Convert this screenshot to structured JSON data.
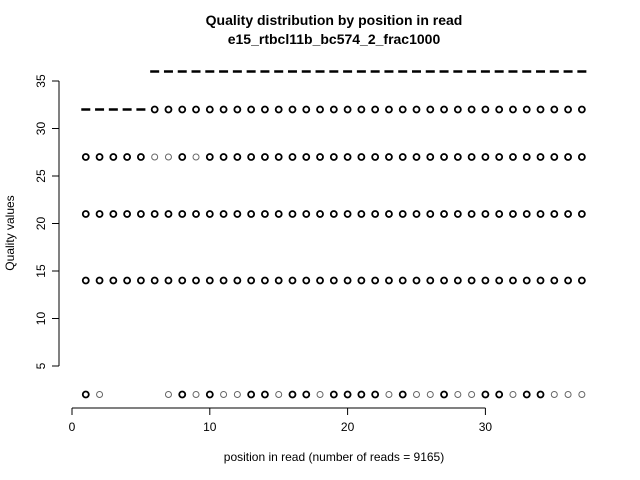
{
  "chart_data": {
    "type": "scatter",
    "title": "Quality distribution by position in read",
    "subtitle": "e15_rtbcl11b_bc574_2_frac1000",
    "xlabel": "position in read (number of reads = 9165)",
    "ylabel": "Quality values",
    "xlim": [
      0,
      38
    ],
    "ylim": [
      1,
      37
    ],
    "xticks": [
      0,
      10,
      20,
      30
    ],
    "yticks": [
      5,
      10,
      15,
      20,
      25,
      30,
      35
    ],
    "grid": false,
    "points": {
      "quality_levels": [
        2,
        14,
        21,
        27,
        32
      ],
      "level_14": {
        "positions": "1-37"
      },
      "level_21": {
        "positions": "1-37"
      },
      "level_27": {
        "positions": "1-37",
        "faint_positions": [
          6,
          7,
          9
        ]
      },
      "level_32": {
        "positions": "6-37"
      },
      "level_2": {
        "positions": [
          1,
          2,
          7,
          8,
          9,
          10,
          11,
          12,
          13,
          14,
          15,
          16,
          17,
          18,
          19,
          20,
          21,
          22,
          23,
          24,
          25,
          26,
          27,
          28,
          29,
          30,
          31,
          32,
          33,
          34,
          35,
          36,
          37
        ],
        "faint_positions": [
          2,
          7,
          9,
          11,
          12,
          15,
          18,
          23,
          25,
          26,
          28,
          29,
          32,
          35,
          36,
          37
        ]
      }
    },
    "series": [
      {
        "marker": "dash",
        "x": [
          1,
          2,
          3,
          4,
          5
        ],
        "y": [
          32,
          32,
          32,
          32,
          32
        ]
      },
      {
        "marker": "dash",
        "x": [
          6,
          7,
          8,
          9,
          10,
          11,
          12,
          13,
          14,
          15,
          16,
          17,
          18,
          19,
          20,
          21,
          22,
          23,
          24,
          25,
          26,
          27,
          28,
          29,
          30,
          31,
          32,
          33,
          34,
          35,
          36,
          37
        ],
        "y": [
          36,
          36,
          36,
          36,
          36,
          36,
          36,
          36,
          36,
          36,
          36,
          36,
          36,
          36,
          36,
          36,
          36,
          36,
          36,
          36,
          36,
          36,
          36,
          36,
          36,
          36,
          36,
          36,
          36,
          36,
          36,
          36
        ]
      }
    ]
  }
}
